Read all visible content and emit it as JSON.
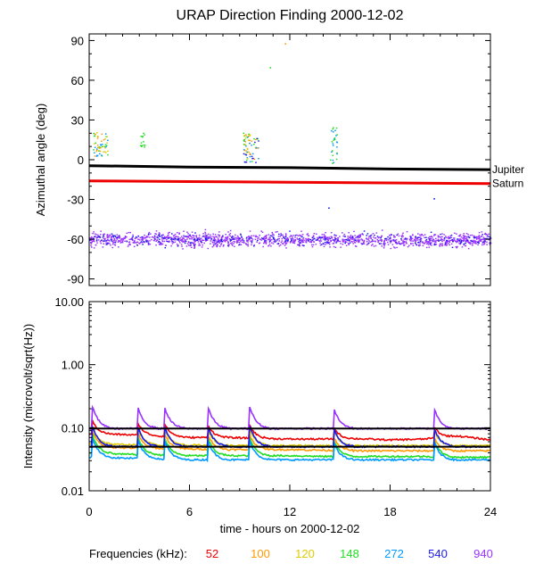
{
  "chart_data": [
    {
      "type": "scatter",
      "title": "URAP Direction Finding  2000-12-02",
      "ylabel": "Azimuthal angle (deg)",
      "xlim": [
        0,
        24
      ],
      "ylim": [
        -95,
        95
      ],
      "yticks": [
        90,
        60,
        30,
        0,
        -30,
        -60,
        -90
      ],
      "reference_lines": [
        {
          "name": "Jupiter",
          "color": "#000000",
          "points": [
            [
              0,
              -4.5
            ],
            [
              6,
              -5.5
            ],
            [
              12,
              -6
            ],
            [
              18,
              -7
            ],
            [
              24,
              -7.5
            ]
          ]
        },
        {
          "name": "Saturn",
          "color": "#ee0000",
          "points": [
            [
              0,
              -16
            ],
            [
              6,
              -16.5
            ],
            [
              12,
              -17
            ],
            [
              18,
              -17.5
            ],
            [
              24,
              -18
            ]
          ]
        }
      ],
      "series": [
        {
          "name": "940",
          "color": "#9933ff",
          "band_center": -60,
          "band_spread": 9,
          "x_range": [
            0,
            24
          ]
        },
        {
          "name": "540",
          "color": "#1a1aee",
          "band_center": -60,
          "band_spread": 8,
          "x_range": [
            0,
            24
          ]
        }
      ],
      "bursts": [
        {
          "x": [
            0.2,
            1.1
          ],
          "y": [
            3,
            21
          ],
          "colors": [
            "#ff9900",
            "#ddcc00",
            "#22dd22",
            "#0099ff"
          ]
        },
        {
          "x": [
            9.2,
            10.1
          ],
          "y": [
            -2,
            21
          ],
          "colors": [
            "#ff9900",
            "#ddcc00",
            "#22dd22",
            "#0099ff",
            "#1a1aee"
          ]
        },
        {
          "x": [
            14.4,
            14.8
          ],
          "y": [
            -3,
            25
          ],
          "colors": [
            "#22dd22",
            "#0099ff"
          ]
        },
        {
          "x": [
            3.0,
            3.3
          ],
          "y": [
            9,
            21
          ],
          "colors": [
            "#22dd22"
          ]
        }
      ],
      "isolated_points": [
        {
          "x": 11.7,
          "y": 88,
          "color": "#ff9900"
        },
        {
          "x": 10.8,
          "y": 70,
          "color": "#22dd22"
        },
        {
          "x": 20.6,
          "y": -29,
          "color": "#1a1aee"
        },
        {
          "x": 14.3,
          "y": -36,
          "color": "#1a1aee"
        }
      ]
    },
    {
      "type": "line",
      "ylabel": "Intensity (microvolt/sqrt(Hz))",
      "xlabel": "time - hours on 2000-12-02",
      "xlim": [
        0,
        24
      ],
      "xticks": [
        0,
        6,
        12,
        18,
        24
      ],
      "ylim": [
        0.01,
        10
      ],
      "yscale": "log",
      "ytick_labels": [
        "10.00",
        "1.00",
        "0.10",
        "0.01"
      ],
      "reference_lines": [
        {
          "color": "#000000",
          "y": 0.097
        },
        {
          "color": "#000000",
          "y": 0.05
        }
      ],
      "events": [
        0.2,
        2.9,
        4.5,
        7.1,
        9.6,
        14.6,
        20.6
      ],
      "series": [
        {
          "name": "52",
          "color": "#ee0000",
          "x": [
            0,
            2,
            4,
            6,
            8,
            10,
            12,
            14,
            16,
            18,
            20,
            22,
            24
          ],
          "y": [
            0.08,
            0.078,
            0.074,
            0.07,
            0.07,
            0.068,
            0.066,
            0.066,
            0.067,
            0.064,
            0.066,
            0.074,
            0.064
          ]
        },
        {
          "name": "100",
          "color": "#ff9900",
          "x": [
            0,
            2,
            4,
            6,
            8,
            10,
            12,
            14,
            16,
            18,
            20,
            22,
            24
          ],
          "y": [
            0.05,
            0.048,
            0.047,
            0.046,
            0.045,
            0.045,
            0.045,
            0.044,
            0.043,
            0.043,
            0.043,
            0.043,
            0.043
          ]
        },
        {
          "name": "120",
          "color": "#ddcc00",
          "x": [
            0,
            2,
            4,
            6,
            8,
            10,
            12,
            14,
            16,
            18,
            20,
            22,
            24
          ],
          "y": [
            0.055,
            0.054,
            0.053,
            0.053,
            0.052,
            0.052,
            0.052,
            0.052,
            0.052,
            0.052,
            0.052,
            0.052,
            0.052
          ]
        },
        {
          "name": "148",
          "color": "#22dd22",
          "x": [
            0,
            2,
            4,
            6,
            8,
            10,
            12,
            14,
            16,
            18,
            20,
            22,
            24
          ],
          "y": [
            0.04,
            0.038,
            0.037,
            0.036,
            0.036,
            0.036,
            0.036,
            0.035,
            0.035,
            0.035,
            0.035,
            0.034,
            0.034
          ]
        },
        {
          "name": "272",
          "color": "#0099ff",
          "x": [
            0,
            2,
            4,
            6,
            8,
            10,
            12,
            14,
            16,
            18,
            20,
            22,
            24
          ],
          "y": [
            0.034,
            0.033,
            0.032,
            0.031,
            0.031,
            0.031,
            0.031,
            0.031,
            0.031,
            0.031,
            0.031,
            0.031,
            0.031
          ]
        },
        {
          "name": "540",
          "color": "#1a1aee",
          "x": [
            0,
            2,
            4,
            6,
            8,
            10,
            12,
            14,
            16,
            18,
            20,
            22,
            24
          ],
          "y": [
            0.05,
            0.05,
            0.05,
            0.05,
            0.05,
            0.05,
            0.05,
            0.05,
            0.05,
            0.05,
            0.05,
            0.05,
            0.05
          ]
        },
        {
          "name": "940",
          "color": "#9933ff",
          "x": [
            0,
            2,
            4,
            6,
            8,
            10,
            12,
            14,
            16,
            18,
            20,
            22,
            24
          ],
          "y": [
            0.097,
            0.097,
            0.097,
            0.097,
            0.097,
            0.097,
            0.097,
            0.097,
            0.097,
            0.097,
            0.097,
            0.097,
            0.097
          ]
        }
      ]
    }
  ],
  "legend": {
    "label": "Frequencies (kHz):",
    "items": [
      {
        "label": "52",
        "color": "#ee0000"
      },
      {
        "label": "100",
        "color": "#ff9900"
      },
      {
        "label": "120",
        "color": "#ddcc00"
      },
      {
        "label": "148",
        "color": "#22dd22"
      },
      {
        "label": "272",
        "color": "#0099ff"
      },
      {
        "label": "540",
        "color": "#1a1aee"
      },
      {
        "label": "940",
        "color": "#9933ff"
      }
    ]
  }
}
